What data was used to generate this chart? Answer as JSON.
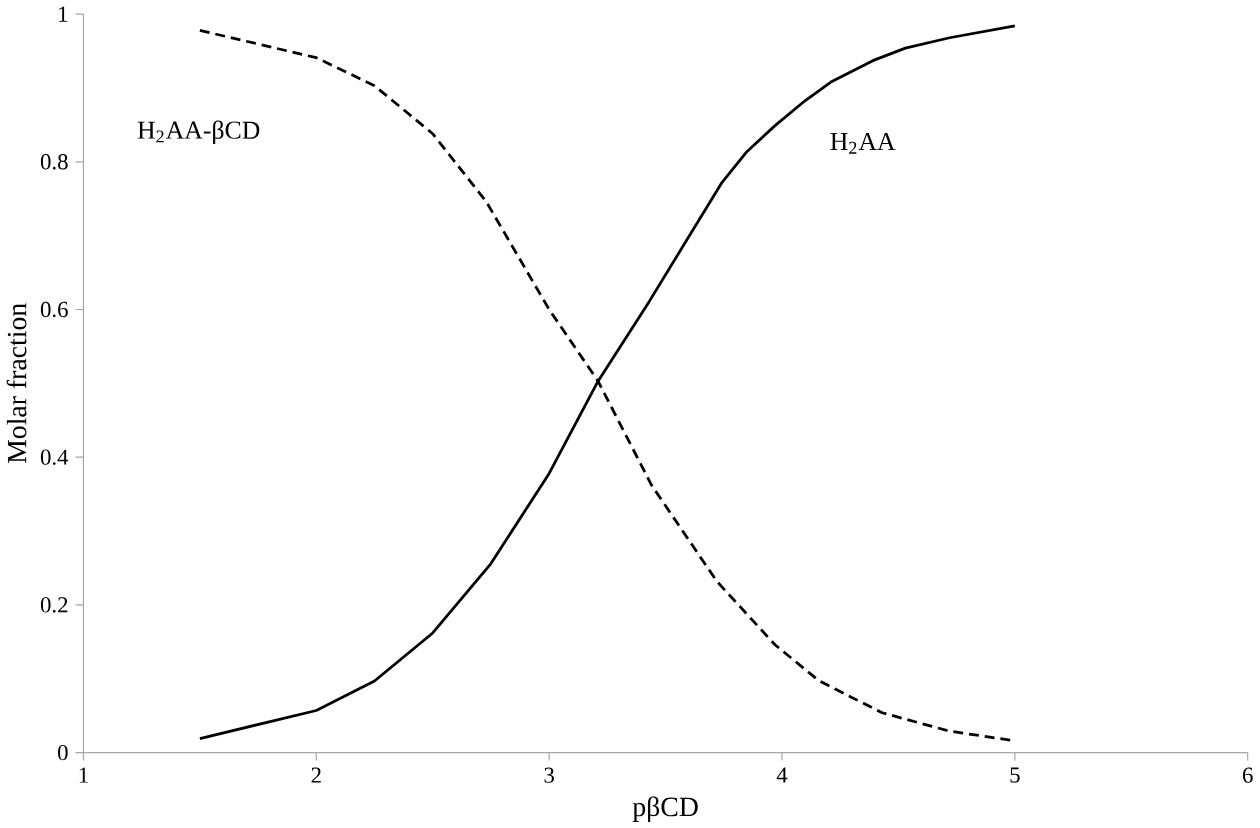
{
  "chart_data": {
    "type": "line",
    "xlabel": "pβCD",
    "ylabel": "Molar fraction",
    "xlim": [
      1,
      6
    ],
    "xticks": [
      1,
      2,
      3,
      4,
      5,
      6
    ],
    "ylim": [
      0,
      1
    ],
    "yticks": [
      0,
      {
        "value": 0.2,
        "label": "0.2"
      },
      {
        "value": 0.4,
        "label": "0.4"
      },
      {
        "value": 0.6,
        "label": "0.6"
      },
      {
        "value": 0.8,
        "label": "0.8"
      },
      1
    ],
    "grid": false,
    "legend": false,
    "marker": "none",
    "series": [
      {
        "name": "H$_{2}$AA",
        "color": "#000000",
        "line_style": "solid",
        "x": [
          1.5,
          2,
          2.25,
          2.5,
          2.75,
          3,
          3.21,
          3.43,
          3.74,
          3.85,
          3.97,
          4.1,
          4.21,
          4.39,
          4.53,
          4.72,
          5
        ],
        "values": [
          0.019,
          0.057,
          0.097,
          0.162,
          0.256,
          0.378,
          0.503,
          0.611,
          0.771,
          0.814,
          0.849,
          0.883,
          0.908,
          0.937,
          0.954,
          0.968,
          0.984
        ]
      },
      {
        "name": "H$_{2}$AA-βCD",
        "color": "#000000",
        "line_style": "dashed",
        "x": [
          1.5,
          2,
          2.25,
          2.5,
          2.73,
          3,
          3.21,
          3.44,
          3.72,
          3.97,
          4.16,
          4.43,
          4.72,
          5
        ],
        "values": [
          0.978,
          0.941,
          0.903,
          0.838,
          0.746,
          0.6,
          0.503,
          0.362,
          0.232,
          0.146,
          0.097,
          0.054,
          0.029,
          0.016
        ]
      }
    ]
  }
}
